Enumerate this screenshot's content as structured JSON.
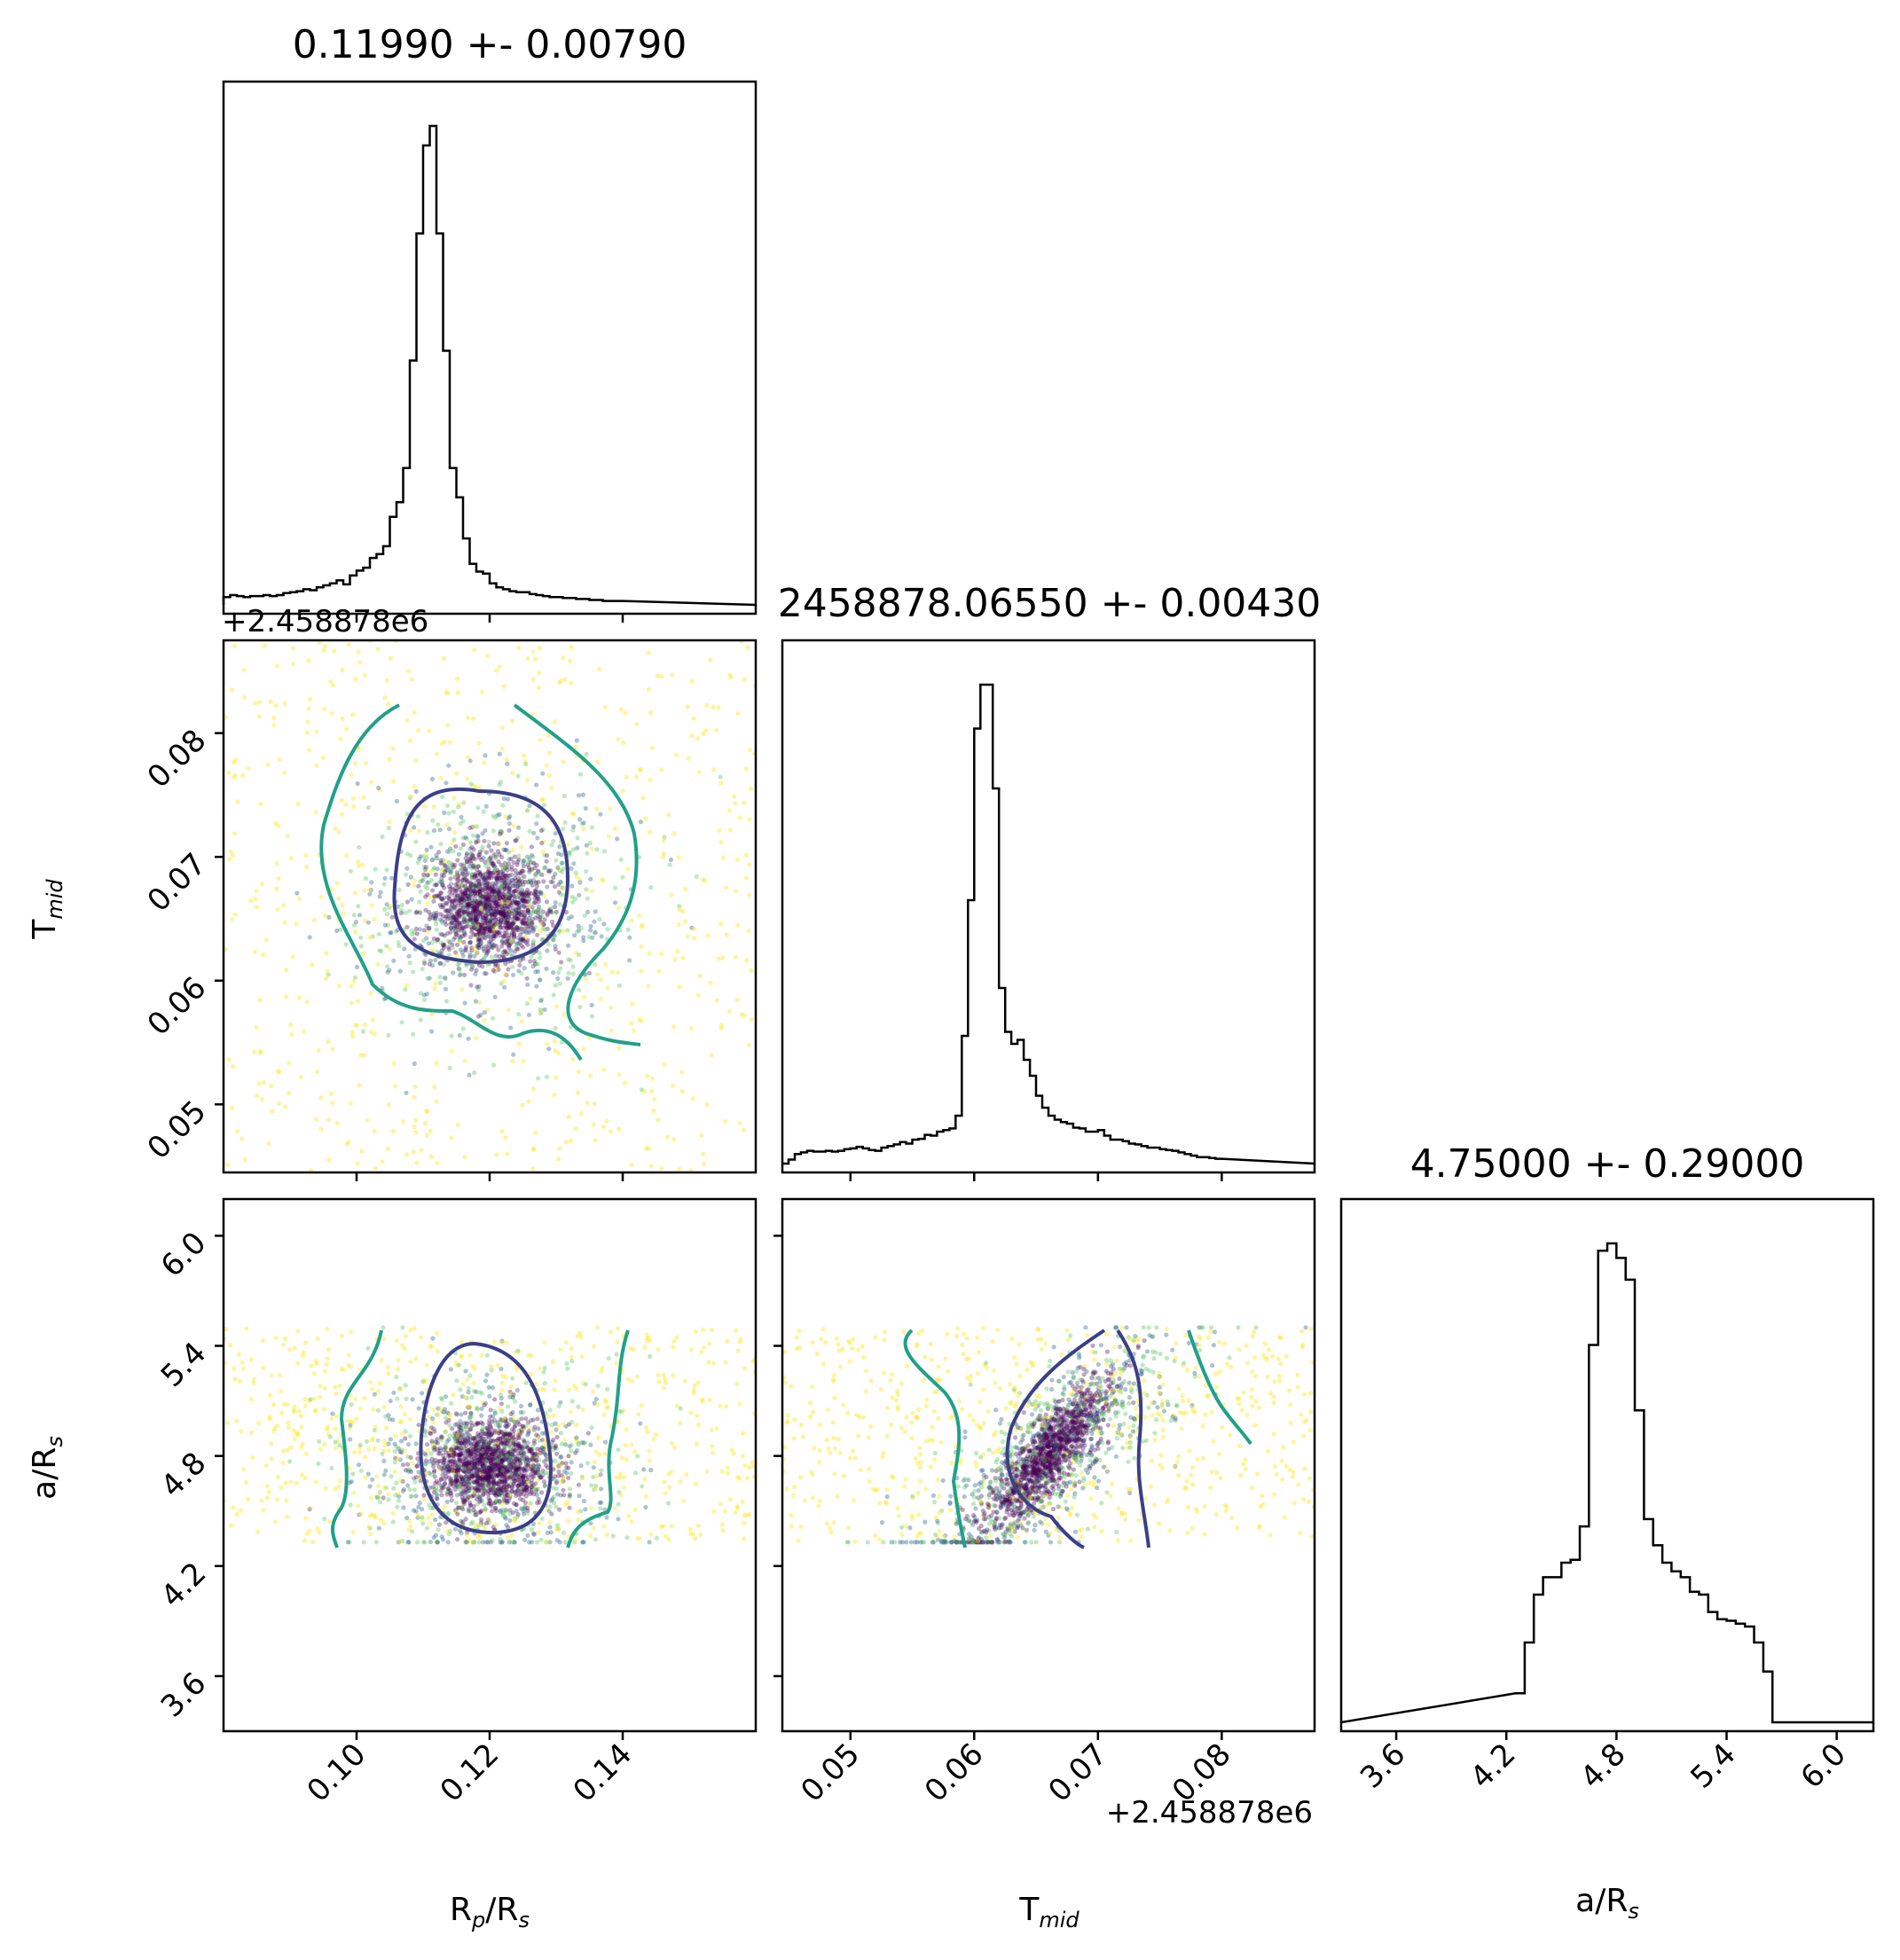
{
  "chart_data": {
    "type": "corner",
    "parameters": [
      {
        "key": "rp",
        "label": "R",
        "sub": "p",
        "label2": "/R",
        "sub2": "s",
        "range": [
          0.08,
          0.16
        ],
        "ticks": [
          "0.10",
          "0.12",
          "0.14"
        ]
      },
      {
        "key": "tmid",
        "label": "T",
        "sub": "mid",
        "range": [
          0.0445,
          0.0875
        ],
        "ticks": [
          "0.05",
          "0.06",
          "0.07",
          "0.08"
        ],
        "offset_label": "+2.458878e6"
      },
      {
        "key": "ars",
        "label": "a/R",
        "sub": "s",
        "range": [
          3.3,
          6.2
        ],
        "ticks": [
          "3.6",
          "4.2",
          "4.8",
          "5.4",
          "6.0"
        ]
      }
    ],
    "titles": [
      "0.11990 +- 0.00790",
      "2458878.06550 +- 0.00430",
      "4.75000 +- 0.29000"
    ],
    "marginals": [
      {
        "param": "rp",
        "bin_width": 0.001,
        "x_start": 0.08,
        "counts": [
          8,
          10,
          9,
          8,
          9,
          9,
          10,
          9,
          10,
          12,
          13,
          14,
          16,
          15,
          18,
          20,
          22,
          25,
          21,
          30,
          35,
          38,
          48,
          52,
          60,
          90,
          105,
          140,
          250,
          380,
          470,
          490,
          380,
          260,
          140,
          110,
          68,
          42,
          34,
          32,
          22,
          18,
          16,
          14,
          13,
          13,
          11,
          10,
          9,
          8,
          8,
          7,
          7,
          6,
          6,
          5,
          5,
          4,
          4,
          4
        ]
      },
      {
        "param": "tmid",
        "bin_width": 0.0005,
        "x_start": 0.0445,
        "counts": [
          0,
          5,
          12,
          14,
          16,
          15,
          15,
          16,
          15,
          16,
          18,
          19,
          21,
          19,
          17,
          16,
          20,
          22,
          24,
          27,
          25,
          30,
          31,
          36,
          35,
          40,
          42,
          44,
          60,
          160,
          330,
          545,
          600,
          600,
          470,
          220,
          165,
          150,
          155,
          130,
          110,
          85,
          70,
          60,
          55,
          52,
          50,
          45,
          44,
          40,
          40,
          42,
          35,
          30,
          30,
          28,
          25,
          24,
          22,
          20,
          20,
          18,
          17,
          16,
          14,
          12,
          10,
          8,
          8,
          7,
          6
        ]
      },
      {
        "param": "ars",
        "bin_width": 0.05,
        "x_start": 4.25,
        "counts": [
          20,
          55,
          88,
          100,
          100,
          110,
          112,
          135,
          260,
          325,
          330,
          320,
          305,
          215,
          140,
          122,
          110,
          104,
          100,
          90,
          88,
          76,
          71,
          70,
          68,
          66,
          55,
          35,
          0
        ]
      }
    ],
    "joint_panels": [
      {
        "x": "rp",
        "y": "tmid",
        "core_center": [
          0.1199,
          0.066
        ],
        "contour_levels": 2
      },
      {
        "x": "rp",
        "y": "ars",
        "core_center": [
          0.1199,
          4.75
        ],
        "contour_levels": 2
      },
      {
        "x": "tmid",
        "y": "ars",
        "core_center": [
          0.0655,
          4.75
        ],
        "contour_levels": 2,
        "correlated": true
      }
    ],
    "colors": {
      "inner_contour": "#3b3f86",
      "outer_contour": "#21a089",
      "points_core": "#440154",
      "points_mid": "#31688e",
      "points_outer": "#fde725",
      "points_green": "#5ec962"
    },
    "offset_labels": [
      "+2.458878e6",
      "+2.458878e6"
    ]
  },
  "labels": {
    "title_1": "0.11990 +- 0.00790",
    "title_2": "2458878.06550 +- 0.00430",
    "title_3": "4.75000 +- 0.29000",
    "offset_top": "+2.458878e6",
    "offset_bottom": "+2.458878e6"
  }
}
